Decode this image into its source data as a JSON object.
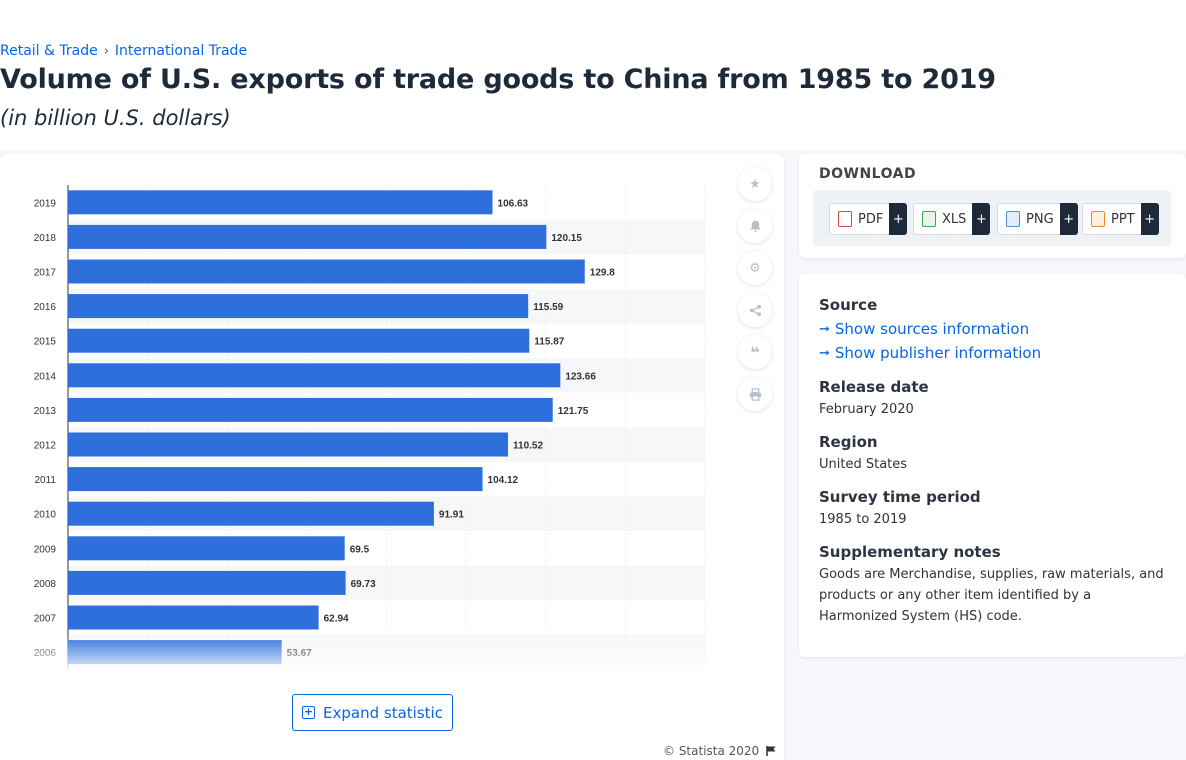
{
  "breadcrumb": {
    "item1": "Retail & Trade",
    "separator": "›",
    "item2": "International Trade"
  },
  "title": "Volume of U.S. exports of trade goods to China from 1985 to 2019",
  "subtitle": "(in billion U.S. dollars)",
  "chart_data": {
    "type": "bar",
    "orientation": "horizontal",
    "title": "",
    "xlabel": "",
    "ylabel": "",
    "categories": [
      "2019",
      "2018",
      "2017",
      "2016",
      "2015",
      "2014",
      "2013",
      "2012",
      "2011",
      "2010",
      "2009",
      "2008",
      "2007",
      "2006"
    ],
    "values": [
      106.63,
      120.15,
      129.8,
      115.59,
      115.87,
      123.66,
      121.75,
      110.52,
      104.12,
      91.91,
      69.5,
      69.73,
      62.94,
      53.67
    ],
    "value_labels": [
      "106.63",
      "120.15",
      "129.8",
      "115.59",
      "115.87",
      "123.66",
      "121.75",
      "110.52",
      "104.12",
      "91.91",
      "69.5",
      "69.73",
      "62.94",
      "53.67"
    ],
    "xlim": [
      0,
      160
    ],
    "grid": true,
    "bar_color": "#2f6fdc"
  },
  "tools": {
    "favorite_icon": "star-icon",
    "alert_icon": "bell-icon",
    "settings_icon": "gear-icon",
    "share_icon": "share-icon",
    "cite_icon": "quote-icon",
    "print_icon": "print-icon"
  },
  "expand_label": "Expand statistic",
  "copyright": "© Statista 2020",
  "download": {
    "title": "DOWNLOAD",
    "buttons": [
      {
        "label": "PDF",
        "plus": "+",
        "color": "#e0443e"
      },
      {
        "label": "XLS",
        "plus": "+",
        "color": "#3aa757"
      },
      {
        "label": "PNG",
        "plus": "+",
        "color": "#4a90d9"
      },
      {
        "label": "PPT",
        "plus": "+",
        "color": "#e8892b"
      }
    ]
  },
  "info": {
    "source_heading": "Source",
    "show_sources": "Show sources information",
    "show_publisher": "Show publisher information",
    "release_heading": "Release date",
    "release_value": "February 2020",
    "region_heading": "Region",
    "region_value": "United States",
    "survey_heading": "Survey time period",
    "survey_value": "1985 to 2019",
    "notes_heading": "Supplementary notes",
    "notes_value": "Goods are Merchandise, supplies, raw materials, and products or any other item identified by a Harmonized System (HS) code."
  }
}
